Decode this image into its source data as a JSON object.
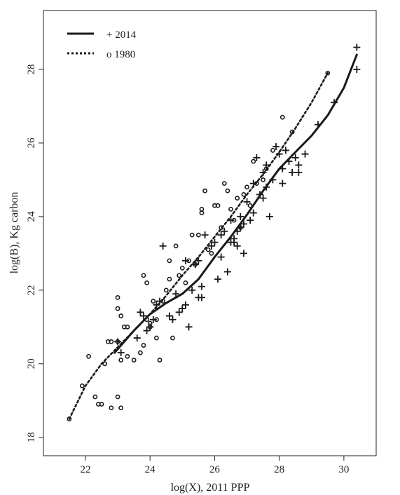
{
  "chart_data": {
    "type": "scatter",
    "title": "",
    "xlabel": "log(X), 2011 PPP",
    "ylabel": "log(B), Kg carbon",
    "xlim": [
      20.7,
      31.0
    ],
    "ylim": [
      17.5,
      29.6
    ],
    "xticks": [
      22,
      24,
      26,
      28,
      30
    ],
    "yticks": [
      18,
      20,
      22,
      24,
      26,
      28
    ],
    "grid": false,
    "legend_placement": "top-left",
    "series": [
      {
        "name": "+ 2014",
        "marker": "plus",
        "line_style": "solid",
        "color": "#1a1a1a",
        "points": [
          [
            23.0,
            20.6
          ],
          [
            23.1,
            20.3
          ],
          [
            23.6,
            20.7
          ],
          [
            23.7,
            21.4
          ],
          [
            23.8,
            21.3
          ],
          [
            23.9,
            20.9
          ],
          [
            24.0,
            21.0
          ],
          [
            24.1,
            21.2
          ],
          [
            24.2,
            21.6
          ],
          [
            24.3,
            21.7
          ],
          [
            24.4,
            23.2
          ],
          [
            24.6,
            21.3
          ],
          [
            24.7,
            21.2
          ],
          [
            24.8,
            21.9
          ],
          [
            24.9,
            21.4
          ],
          [
            25.0,
            21.5
          ],
          [
            25.1,
            21.6
          ],
          [
            25.1,
            22.8
          ],
          [
            25.2,
            21.0
          ],
          [
            25.3,
            22.0
          ],
          [
            25.4,
            22.7
          ],
          [
            25.5,
            22.8
          ],
          [
            25.5,
            21.8
          ],
          [
            25.6,
            21.8
          ],
          [
            25.6,
            22.1
          ],
          [
            25.7,
            23.5
          ],
          [
            25.9,
            23.2
          ],
          [
            26.0,
            23.3
          ],
          [
            26.1,
            22.3
          ],
          [
            26.2,
            22.9
          ],
          [
            26.2,
            23.5
          ],
          [
            26.3,
            23.6
          ],
          [
            26.4,
            22.5
          ],
          [
            26.5,
            23.3
          ],
          [
            26.5,
            23.9
          ],
          [
            26.6,
            23.4
          ],
          [
            26.6,
            23.3
          ],
          [
            26.7,
            23.6
          ],
          [
            26.7,
            23.2
          ],
          [
            26.8,
            23.7
          ],
          [
            26.8,
            24.0
          ],
          [
            26.9,
            23.8
          ],
          [
            26.9,
            23.0
          ],
          [
            27.0,
            24.4
          ],
          [
            27.1,
            23.9
          ],
          [
            27.2,
            24.1
          ],
          [
            27.2,
            24.9
          ],
          [
            27.3,
            25.6
          ],
          [
            27.4,
            24.6
          ],
          [
            27.5,
            24.5
          ],
          [
            27.5,
            25.2
          ],
          [
            27.6,
            24.8
          ],
          [
            27.6,
            25.4
          ],
          [
            27.7,
            24.0
          ],
          [
            27.8,
            25.0
          ],
          [
            27.9,
            25.9
          ],
          [
            28.0,
            25.7
          ],
          [
            28.1,
            25.3
          ],
          [
            28.1,
            24.9
          ],
          [
            28.2,
            25.8
          ],
          [
            28.3,
            25.5
          ],
          [
            28.4,
            25.2
          ],
          [
            28.5,
            25.6
          ],
          [
            28.6,
            25.4
          ],
          [
            28.6,
            25.2
          ],
          [
            28.8,
            25.7
          ],
          [
            29.2,
            26.5
          ],
          [
            29.7,
            27.1
          ],
          [
            30.4,
            28.0
          ],
          [
            30.4,
            28.6
          ]
        ],
        "trend": [
          [
            22.9,
            20.3
          ],
          [
            23.5,
            20.9
          ],
          [
            24.0,
            21.35
          ],
          [
            24.5,
            21.65
          ],
          [
            25.0,
            21.9
          ],
          [
            25.5,
            22.3
          ],
          [
            26.0,
            22.9
          ],
          [
            26.5,
            23.45
          ],
          [
            27.0,
            24.05
          ],
          [
            27.5,
            24.7
          ],
          [
            28.0,
            25.3
          ],
          [
            28.5,
            25.75
          ],
          [
            29.0,
            26.2
          ],
          [
            29.5,
            26.75
          ],
          [
            30.0,
            27.5
          ],
          [
            30.4,
            28.4
          ]
        ]
      },
      {
        "name": "o 1980",
        "marker": "circle",
        "line_style": "dotted",
        "color": "#1a1a1a",
        "points": [
          [
            21.5,
            18.5
          ],
          [
            21.9,
            19.4
          ],
          [
            22.1,
            20.2
          ],
          [
            22.4,
            18.9
          ],
          [
            22.5,
            18.9
          ],
          [
            22.3,
            19.1
          ],
          [
            22.6,
            20.0
          ],
          [
            22.7,
            20.6
          ],
          [
            22.8,
            20.6
          ],
          [
            22.8,
            18.8
          ],
          [
            23.0,
            19.1
          ],
          [
            23.1,
            18.8
          ],
          [
            23.0,
            21.8
          ],
          [
            23.0,
            21.5
          ],
          [
            23.1,
            21.3
          ],
          [
            23.2,
            21.0
          ],
          [
            23.3,
            21.0
          ],
          [
            23.0,
            20.6
          ],
          [
            23.1,
            20.1
          ],
          [
            23.3,
            20.2
          ],
          [
            23.5,
            20.1
          ],
          [
            23.7,
            20.3
          ],
          [
            23.8,
            20.5
          ],
          [
            23.8,
            22.4
          ],
          [
            23.9,
            22.2
          ],
          [
            23.9,
            21.2
          ],
          [
            24.0,
            21.1
          ],
          [
            24.0,
            21.0
          ],
          [
            24.1,
            21.7
          ],
          [
            24.2,
            21.2
          ],
          [
            24.2,
            20.7
          ],
          [
            24.3,
            20.1
          ],
          [
            24.4,
            21.7
          ],
          [
            24.5,
            22.0
          ],
          [
            24.6,
            22.3
          ],
          [
            24.6,
            22.8
          ],
          [
            24.7,
            20.7
          ],
          [
            24.8,
            23.2
          ],
          [
            24.9,
            22.4
          ],
          [
            25.0,
            22.6
          ],
          [
            25.1,
            22.2
          ],
          [
            25.2,
            22.8
          ],
          [
            25.3,
            23.5
          ],
          [
            25.4,
            22.7
          ],
          [
            25.5,
            23.5
          ],
          [
            25.6,
            24.2
          ],
          [
            25.6,
            24.1
          ],
          [
            25.7,
            24.7
          ],
          [
            25.8,
            23.1
          ],
          [
            25.9,
            23.0
          ],
          [
            26.0,
            24.3
          ],
          [
            26.1,
            24.3
          ],
          [
            26.2,
            23.7
          ],
          [
            26.3,
            24.9
          ],
          [
            26.4,
            24.7
          ],
          [
            26.5,
            24.2
          ],
          [
            26.6,
            23.9
          ],
          [
            26.7,
            24.5
          ],
          [
            26.8,
            23.7
          ],
          [
            26.9,
            24.6
          ],
          [
            27.0,
            24.8
          ],
          [
            27.1,
            24.3
          ],
          [
            27.2,
            25.5
          ],
          [
            27.3,
            24.9
          ],
          [
            27.5,
            25.0
          ],
          [
            27.6,
            25.3
          ],
          [
            27.8,
            25.8
          ],
          [
            28.1,
            26.7
          ],
          [
            28.4,
            26.3
          ],
          [
            29.5,
            27.9
          ]
        ],
        "trend": [
          [
            21.5,
            18.5
          ],
          [
            22.0,
            19.4
          ],
          [
            22.5,
            20.0
          ],
          [
            23.0,
            20.45
          ],
          [
            23.5,
            20.9
          ],
          [
            24.0,
            21.35
          ],
          [
            24.5,
            21.85
          ],
          [
            25.0,
            22.4
          ],
          [
            25.5,
            22.9
          ],
          [
            26.0,
            23.45
          ],
          [
            26.5,
            24.0
          ],
          [
            27.0,
            24.6
          ],
          [
            27.5,
            25.15
          ],
          [
            28.0,
            25.75
          ],
          [
            28.5,
            26.4
          ],
          [
            29.0,
            27.1
          ],
          [
            29.5,
            27.9
          ]
        ]
      }
    ]
  }
}
